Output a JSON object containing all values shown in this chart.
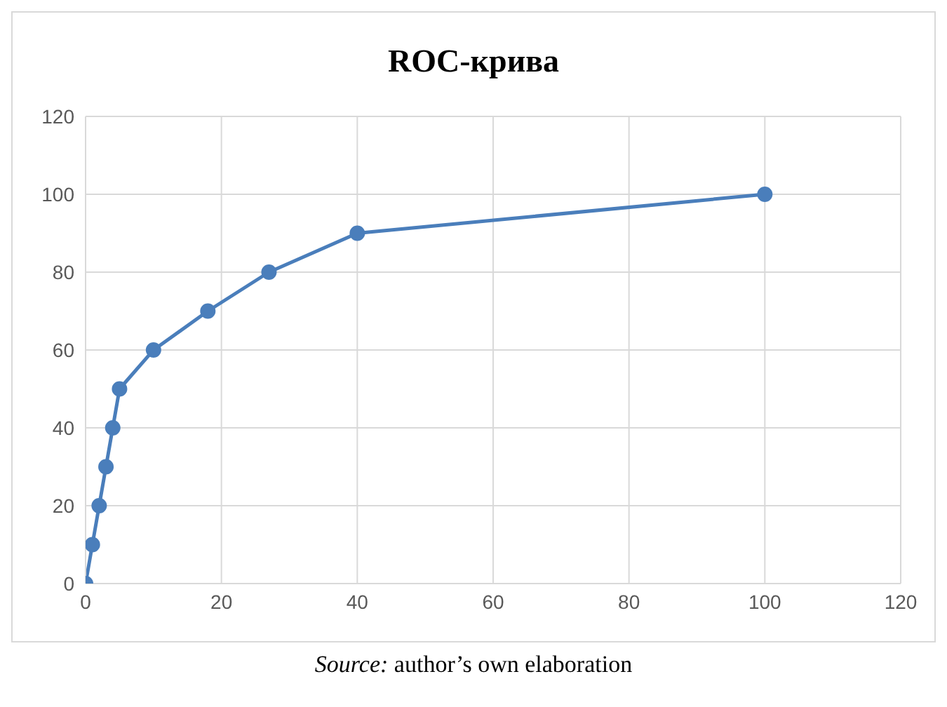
{
  "chart_data": {
    "type": "line",
    "title": "ROC-крива",
    "x": [
      0,
      1,
      2,
      3,
      4,
      5,
      10,
      18,
      27,
      40,
      100
    ],
    "series": [
      {
        "color": "#4a7ebb",
        "values": [
          0,
          10,
          20,
          30,
          40,
          50,
          60,
          70,
          80,
          90,
          100
        ]
      }
    ],
    "xlim": [
      0,
      120
    ],
    "xticks": [
      0,
      20,
      40,
      60,
      80,
      100,
      120
    ],
    "ylim": [
      0,
      120
    ],
    "yticks": [
      0,
      20,
      40,
      60,
      80,
      100,
      120
    ],
    "grid": true,
    "marker": "circle",
    "line_style": "solid",
    "annotations": [
      "Source: author’s own elaboration"
    ]
  }
}
